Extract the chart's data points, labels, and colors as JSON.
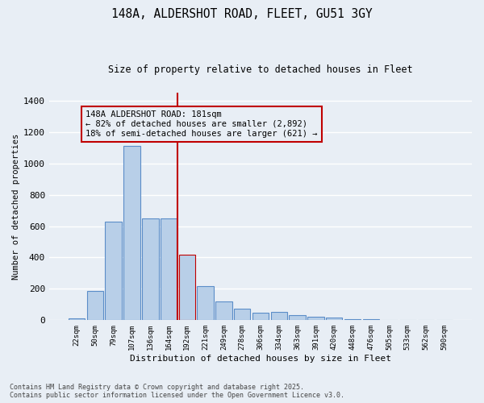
{
  "title_line1": "148A, ALDERSHOT ROAD, FLEET, GU51 3GY",
  "title_line2": "Size of property relative to detached houses in Fleet",
  "xlabel": "Distribution of detached houses by size in Fleet",
  "ylabel": "Number of detached properties",
  "categories": [
    "22sqm",
    "50sqm",
    "79sqm",
    "107sqm",
    "136sqm",
    "164sqm",
    "192sqm",
    "221sqm",
    "249sqm",
    "278sqm",
    "306sqm",
    "334sqm",
    "363sqm",
    "391sqm",
    "420sqm",
    "448sqm",
    "476sqm",
    "505sqm",
    "533sqm",
    "562sqm",
    "590sqm"
  ],
  "values": [
    10,
    185,
    630,
    1110,
    650,
    650,
    420,
    215,
    120,
    75,
    50,
    55,
    30,
    20,
    15,
    5,
    5,
    2,
    2,
    2,
    2
  ],
  "bar_color": "#b8cfe8",
  "bar_edgecolor": "#5b8dc8",
  "highlight_bar_index": 6,
  "highlight_bar_color": "#b8cfe8",
  "highlight_bar_edgecolor": "#c00000",
  "vline_color": "#c00000",
  "annotation_text": "148A ALDERSHOT ROAD: 181sqm\n← 82% of detached houses are smaller (2,892)\n18% of semi-detached houses are larger (621) →",
  "annotation_box_color": "#c00000",
  "ylim": [
    0,
    1450
  ],
  "yticks": [
    0,
    200,
    400,
    600,
    800,
    1000,
    1200,
    1400
  ],
  "background_color": "#e8eef5",
  "grid_color": "#ffffff",
  "footer_line1": "Contains HM Land Registry data © Crown copyright and database right 2025.",
  "footer_line2": "Contains public sector information licensed under the Open Government Licence v3.0."
}
